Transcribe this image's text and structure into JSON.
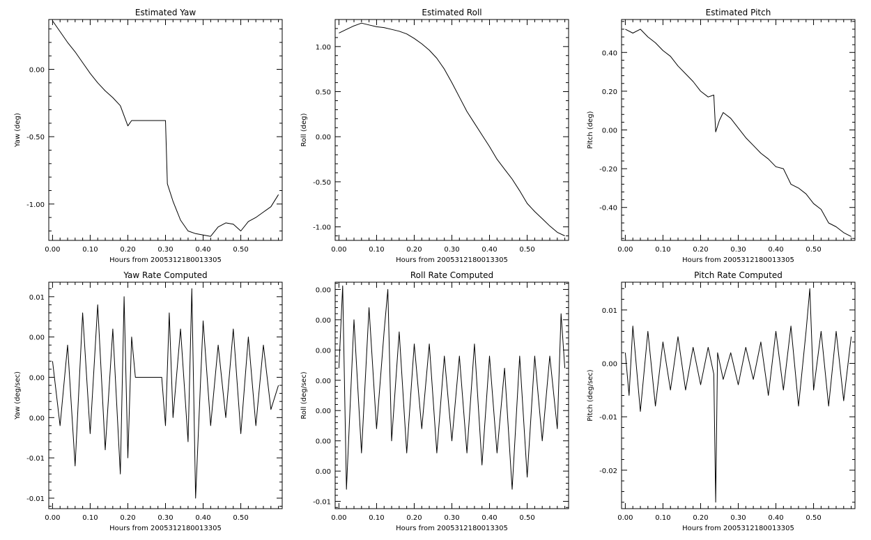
{
  "chart_data": [
    {
      "type": "line",
      "title": "Estimated Yaw",
      "xlabel": "Hours from 2005312180013305",
      "ylabel": "Yaw (deg)",
      "xlim": [
        -0.01,
        0.61
      ],
      "ylim": [
        -1.27,
        0.37
      ],
      "xticks": [
        0.0,
        0.1,
        0.2,
        0.3,
        0.4,
        0.5
      ],
      "xtick_labels": [
        "0.00",
        "0.10",
        "0.20",
        "0.30",
        "0.40",
        "0.50"
      ],
      "yticks": [
        0.0,
        -0.5,
        -1.0
      ],
      "ytick_labels": [
        "0.00",
        "-0.50",
        "-1.00"
      ],
      "series": [
        {
          "x": [
            0.0,
            0.02,
            0.04,
            0.06,
            0.08,
            0.1,
            0.12,
            0.14,
            0.16,
            0.18,
            0.2,
            0.205,
            0.21,
            0.3,
            0.305,
            0.32,
            0.34,
            0.36,
            0.38,
            0.4,
            0.42,
            0.44,
            0.46,
            0.48,
            0.5,
            0.52,
            0.54,
            0.56,
            0.58,
            0.6
          ],
          "y": [
            0.36,
            0.28,
            0.2,
            0.13,
            0.05,
            -0.03,
            -0.1,
            -0.16,
            -0.21,
            -0.27,
            -0.42,
            -0.4,
            -0.38,
            -0.38,
            -0.85,
            -0.98,
            -1.12,
            -1.2,
            -1.22,
            -1.23,
            -1.24,
            -1.17,
            -1.14,
            -1.15,
            -1.2,
            -1.13,
            -1.1,
            -1.06,
            -1.02,
            -0.93
          ]
        }
      ]
    },
    {
      "type": "line",
      "title": "Estimated Roll",
      "xlabel": "Hours from 2005312180013305",
      "ylabel": "Roll (deg)",
      "xlim": [
        -0.01,
        0.61
      ],
      "ylim": [
        -1.15,
        1.3
      ],
      "xticks": [
        0.0,
        0.1,
        0.2,
        0.3,
        0.4,
        0.5
      ],
      "xtick_labels": [
        "0.00",
        "0.10",
        "0.20",
        "0.30",
        "0.40",
        "0.50"
      ],
      "yticks": [
        1.0,
        0.5,
        0.0,
        -0.5,
        -1.0
      ],
      "ytick_labels": [
        "1.00",
        "0.50",
        "0.00",
        "-0.50",
        "-1.00"
      ],
      "series": [
        {
          "x": [
            0.0,
            0.02,
            0.04,
            0.06,
            0.08,
            0.1,
            0.12,
            0.14,
            0.16,
            0.18,
            0.2,
            0.22,
            0.24,
            0.26,
            0.28,
            0.3,
            0.32,
            0.34,
            0.36,
            0.38,
            0.4,
            0.42,
            0.44,
            0.46,
            0.48,
            0.5,
            0.52,
            0.54,
            0.56,
            0.58,
            0.6
          ],
          "y": [
            1.15,
            1.19,
            1.23,
            1.26,
            1.24,
            1.22,
            1.21,
            1.19,
            1.17,
            1.14,
            1.09,
            1.03,
            0.96,
            0.87,
            0.75,
            0.6,
            0.44,
            0.28,
            0.15,
            0.02,
            -0.11,
            -0.25,
            -0.36,
            -0.47,
            -0.6,
            -0.74,
            -0.83,
            -0.91,
            -0.99,
            -1.06,
            -1.1
          ]
        }
      ]
    },
    {
      "type": "line",
      "title": "Estimated Pitch",
      "xlabel": "Hours from 2005312180013305",
      "ylabel": "Pitch (deg)",
      "xlim": [
        -0.01,
        0.61
      ],
      "ylim": [
        -0.57,
        0.57
      ],
      "xticks": [
        0.0,
        0.1,
        0.2,
        0.3,
        0.4,
        0.5
      ],
      "xtick_labels": [
        "0.00",
        "0.10",
        "0.20",
        "0.30",
        "0.40",
        "0.50"
      ],
      "yticks": [
        0.4,
        0.2,
        0.0,
        -0.2,
        -0.4
      ],
      "ytick_labels": [
        "0.40",
        "0.20",
        "0.00",
        "-0.20",
        "-0.40"
      ],
      "series": [
        {
          "x": [
            0.0,
            0.02,
            0.04,
            0.06,
            0.08,
            0.1,
            0.12,
            0.14,
            0.16,
            0.18,
            0.2,
            0.22,
            0.235,
            0.24,
            0.25,
            0.26,
            0.28,
            0.3,
            0.32,
            0.34,
            0.36,
            0.38,
            0.4,
            0.42,
            0.44,
            0.46,
            0.48,
            0.5,
            0.52,
            0.54,
            0.56,
            0.58,
            0.6
          ],
          "y": [
            0.52,
            0.5,
            0.52,
            0.48,
            0.45,
            0.41,
            0.38,
            0.33,
            0.29,
            0.25,
            0.2,
            0.17,
            0.18,
            -0.01,
            0.05,
            0.09,
            0.06,
            0.01,
            -0.04,
            -0.08,
            -0.12,
            -0.15,
            -0.19,
            -0.2,
            -0.28,
            -0.3,
            -0.33,
            -0.38,
            -0.41,
            -0.48,
            -0.5,
            -0.53,
            -0.55
          ]
        }
      ]
    },
    {
      "type": "line",
      "title": "Yaw Rate Computed",
      "xlabel": "Hours from 2005312180013305",
      "ylabel": "Yaw (deg/sec)",
      "xlim": [
        -0.01,
        0.61
      ],
      "ylim": [
        -0.0163,
        0.0118
      ],
      "xticks": [
        0.0,
        0.1,
        0.2,
        0.3,
        0.4,
        0.5
      ],
      "xtick_labels": [
        "0.00",
        "0.10",
        "0.20",
        "0.30",
        "0.40",
        "0.50"
      ],
      "yticks": [
        0.01,
        0.005,
        0.0,
        -0.005,
        -0.01,
        -0.015
      ],
      "ytick_labels": [
        "0.01",
        "0.00",
        "0.00",
        "0.00",
        "-0.01",
        "-0.01"
      ],
      "series": [
        {
          "x": [
            0.0,
            0.02,
            0.04,
            0.06,
            0.08,
            0.1,
            0.12,
            0.14,
            0.16,
            0.18,
            0.19,
            0.2,
            0.21,
            0.22,
            0.29,
            0.3,
            0.31,
            0.32,
            0.34,
            0.36,
            0.37,
            0.38,
            0.4,
            0.42,
            0.44,
            0.46,
            0.48,
            0.5,
            0.52,
            0.54,
            0.56,
            0.58,
            0.6
          ],
          "y": [
            0.002,
            -0.006,
            0.004,
            -0.011,
            0.008,
            -0.007,
            0.009,
            -0.009,
            0.006,
            -0.012,
            0.01,
            -0.01,
            0.005,
            0.0,
            0.0,
            -0.006,
            0.008,
            -0.005,
            0.006,
            -0.008,
            0.011,
            -0.015,
            0.007,
            -0.006,
            0.004,
            -0.005,
            0.006,
            -0.007,
            0.005,
            -0.006,
            0.004,
            -0.004,
            -0.001
          ]
        }
      ]
    },
    {
      "type": "line",
      "title": "Roll Rate Computed",
      "xlabel": "Hours from 2005312180013305",
      "ylabel": "Roll (deg/sec)",
      "xlim": [
        -0.01,
        0.61
      ],
      "ylim": [
        -0.0106,
        0.0081
      ],
      "xticks": [
        0.0,
        0.1,
        0.2,
        0.3,
        0.4,
        0.5
      ],
      "xtick_labels": [
        "0.00",
        "0.10",
        "0.20",
        "0.30",
        "0.40",
        "0.50"
      ],
      "yticks": [
        0.0075,
        0.005,
        0.0025,
        0.0,
        -0.0025,
        -0.005,
        -0.0075,
        -0.01
      ],
      "ytick_labels": [
        "0.00",
        "0.00",
        "0.00",
        "0.00",
        "0.00",
        "0.00",
        "0.00",
        "-0.01"
      ],
      "series": [
        {
          "x": [
            0.0,
            0.01,
            0.02,
            0.04,
            0.06,
            0.08,
            0.1,
            0.12,
            0.13,
            0.14,
            0.16,
            0.18,
            0.2,
            0.22,
            0.24,
            0.26,
            0.28,
            0.3,
            0.32,
            0.34,
            0.36,
            0.38,
            0.4,
            0.42,
            0.44,
            0.46,
            0.48,
            0.5,
            0.52,
            0.54,
            0.56,
            0.58,
            0.59,
            0.6
          ],
          "y": [
            0.001,
            0.0078,
            -0.009,
            0.005,
            -0.006,
            0.006,
            -0.004,
            0.004,
            0.0075,
            -0.005,
            0.004,
            -0.006,
            0.003,
            -0.004,
            0.003,
            -0.006,
            0.002,
            -0.005,
            0.002,
            -0.006,
            0.003,
            -0.007,
            0.002,
            -0.006,
            0.001,
            -0.009,
            0.002,
            -0.008,
            0.002,
            -0.005,
            0.002,
            -0.004,
            0.0055,
            0.001
          ]
        }
      ]
    },
    {
      "type": "line",
      "title": "Pitch Rate Computed",
      "xlabel": "Hours from 2005312180013305",
      "ylabel": "Pitch (deg/sec)",
      "xlim": [
        -0.01,
        0.61
      ],
      "ylim": [
        -0.0272,
        0.0152
      ],
      "xticks": [
        0.0,
        0.1,
        0.2,
        0.3,
        0.4,
        0.5
      ],
      "xtick_labels": [
        "0.00",
        "0.10",
        "0.20",
        "0.30",
        "0.40",
        "0.50"
      ],
      "yticks": [
        0.01,
        0.0,
        -0.01,
        -0.02
      ],
      "ytick_labels": [
        "0.01",
        "0.00",
        "-0.01",
        "-0.02"
      ],
      "series": [
        {
          "x": [
            0.0,
            0.01,
            0.02,
            0.04,
            0.06,
            0.08,
            0.1,
            0.12,
            0.14,
            0.16,
            0.18,
            0.2,
            0.22,
            0.235,
            0.24,
            0.245,
            0.26,
            0.28,
            0.3,
            0.32,
            0.34,
            0.36,
            0.38,
            0.4,
            0.42,
            0.44,
            0.46,
            0.48,
            0.49,
            0.5,
            0.52,
            0.54,
            0.56,
            0.58,
            0.6
          ],
          "y": [
            0.002,
            -0.006,
            0.007,
            -0.009,
            0.006,
            -0.008,
            0.004,
            -0.005,
            0.005,
            -0.005,
            0.003,
            -0.004,
            0.003,
            -0.002,
            -0.026,
            0.002,
            -0.003,
            0.002,
            -0.004,
            0.003,
            -0.003,
            0.004,
            -0.006,
            0.006,
            -0.005,
            0.007,
            -0.008,
            0.006,
            0.014,
            -0.005,
            0.006,
            -0.008,
            0.006,
            -0.007,
            0.005
          ]
        }
      ]
    }
  ]
}
